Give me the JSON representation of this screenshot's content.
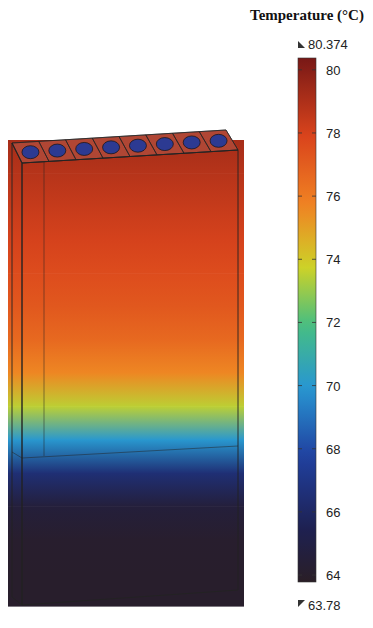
{
  "chart_data": {
    "type": "heatmap",
    "title": "Temperature (°C)",
    "colorbar": {
      "range": [
        63.78,
        80.374
      ],
      "ticks": [
        64,
        66,
        68,
        70,
        72,
        74,
        76,
        78,
        80
      ]
    },
    "profile": [
      79.2,
      78.8,
      78.4,
      78,
      77.6,
      77.2,
      76.6,
      75.6,
      73.5,
      70,
      66.5,
      64.6,
      64.1,
      64,
      64
    ]
  }
}
